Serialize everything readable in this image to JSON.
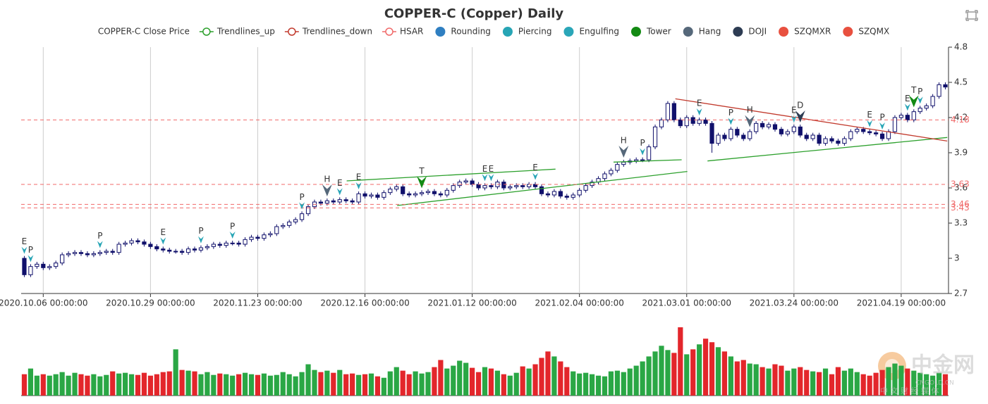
{
  "chart_data": {
    "type": "candlestick",
    "title": "COPPER-C (Copper) Daily",
    "categories": [
      null,
      null,
      null,
      "2020.10.06 00:00:00",
      null,
      null,
      null,
      null,
      null,
      null,
      null,
      null,
      null,
      null,
      null,
      null,
      null,
      null,
      null,
      null,
      "2020.10.29 00:00:00",
      null,
      null,
      null,
      null,
      null,
      null,
      null,
      null,
      null,
      null,
      null,
      null,
      null,
      null,
      null,
      null,
      "2020.11.23 00:00:00",
      null,
      null,
      null,
      null,
      null,
      null,
      null,
      null,
      null,
      null,
      null,
      null,
      null,
      null,
      null,
      null,
      "2020.12.16 00:00:00",
      null,
      null,
      null,
      null,
      null,
      null,
      null,
      null,
      null,
      null,
      null,
      null,
      null,
      null,
      null,
      null,
      "2021.01.12 00:00:00",
      null,
      null,
      null,
      null,
      null,
      null,
      null,
      null,
      null,
      null,
      null,
      null,
      null,
      null,
      null,
      null,
      "2021.02.04 00:00:00",
      null,
      null,
      null,
      null,
      null,
      null,
      null,
      null,
      null,
      null,
      null,
      null,
      null,
      null,
      null,
      null,
      "2021.03.01 00:00:00",
      null,
      null,
      null,
      null,
      null,
      null,
      null,
      null,
      null,
      null,
      null,
      null,
      null,
      null,
      null,
      null,
      "2021.03.24 00:00:00",
      null,
      null,
      null,
      null,
      null,
      null,
      null,
      null,
      null,
      null,
      null,
      null,
      null,
      null,
      null,
      null,
      "2021.04.19 00:00:00",
      null,
      null,
      null,
      null,
      null,
      null,
      null
    ],
    "open": [
      3.0,
      2.86,
      2.93,
      2.95,
      2.92,
      2.93,
      2.96,
      3.03,
      3.04,
      3.05,
      3.04,
      3.03,
      3.04,
      3.05,
      3.06,
      3.05,
      3.12,
      3.13,
      3.15,
      3.14,
      3.12,
      3.1,
      3.08,
      3.07,
      3.06,
      3.06,
      3.05,
      3.08,
      3.07,
      3.09,
      3.1,
      3.12,
      3.11,
      3.13,
      3.13,
      3.12,
      3.16,
      3.18,
      3.17,
      3.2,
      3.21,
      3.27,
      3.28,
      3.31,
      3.33,
      3.38,
      3.44,
      3.48,
      3.47,
      3.49,
      3.48,
      3.5,
      3.49,
      3.48,
      3.55,
      3.53,
      3.54,
      3.52,
      3.56,
      3.59,
      3.61,
      3.55,
      3.54,
      3.55,
      3.56,
      3.57,
      3.55,
      3.54,
      3.58,
      3.62,
      3.65,
      3.66,
      3.63,
      3.6,
      3.62,
      3.61,
      3.65,
      3.6,
      3.61,
      3.62,
      3.61,
      3.63,
      3.61,
      3.55,
      3.54,
      3.57,
      3.53,
      3.52,
      3.54,
      3.58,
      3.62,
      3.65,
      3.68,
      3.72,
      3.75,
      3.8,
      3.82,
      3.83,
      3.84,
      3.84,
      3.95,
      4.12,
      4.18,
      4.32,
      4.18,
      4.13,
      4.2,
      4.15,
      4.18,
      4.15,
      3.98,
      4.05,
      4.02,
      4.1,
      4.05,
      4.02,
      4.08,
      4.15,
      4.12,
      4.14,
      4.1,
      4.06,
      4.08,
      4.12,
      4.05,
      4.02,
      4.05,
      3.98,
      4.02,
      4.0,
      3.98,
      4.02,
      4.08,
      4.1,
      4.08,
      4.07,
      4.06,
      4.02,
      4.08,
      4.2,
      4.22,
      4.18,
      4.25,
      4.28,
      4.3,
      4.38,
      4.48
    ],
    "high": [
      3.02,
      2.95,
      2.97,
      2.97,
      2.95,
      2.98,
      3.05,
      3.06,
      3.07,
      3.07,
      3.06,
      3.06,
      3.07,
      3.08,
      3.08,
      3.14,
      3.15,
      3.17,
      3.17,
      3.16,
      3.14,
      3.12,
      3.1,
      3.09,
      3.08,
      3.08,
      3.1,
      3.1,
      3.11,
      3.12,
      3.14,
      3.14,
      3.15,
      3.15,
      3.15,
      3.18,
      3.2,
      3.2,
      3.22,
      3.23,
      3.29,
      3.3,
      3.33,
      3.35,
      3.4,
      3.46,
      3.5,
      3.5,
      3.51,
      3.51,
      3.52,
      3.52,
      3.51,
      3.57,
      3.57,
      3.56,
      3.56,
      3.58,
      3.61,
      3.63,
      3.63,
      3.57,
      3.57,
      3.58,
      3.59,
      3.59,
      3.57,
      3.6,
      3.64,
      3.67,
      3.68,
      3.68,
      3.65,
      3.64,
      3.64,
      3.67,
      3.67,
      3.63,
      3.64,
      3.64,
      3.65,
      3.65,
      3.63,
      3.57,
      3.59,
      3.59,
      3.55,
      3.56,
      3.6,
      3.64,
      3.67,
      3.7,
      3.74,
      3.77,
      3.82,
      3.84,
      3.85,
      3.86,
      3.86,
      3.97,
      4.14,
      4.2,
      4.34,
      4.34,
      4.2,
      4.22,
      4.22,
      4.2,
      4.2,
      4.17,
      4.07,
      4.07,
      4.12,
      4.12,
      4.07,
      4.1,
      4.17,
      4.17,
      4.16,
      4.16,
      4.12,
      4.1,
      4.14,
      4.14,
      4.07,
      4.07,
      4.07,
      4.04,
      4.04,
      4.02,
      4.04,
      4.1,
      4.12,
      4.12,
      4.1,
      4.09,
      4.08,
      4.1,
      4.22,
      4.24,
      4.24,
      4.27,
      4.3,
      4.32,
      4.4,
      4.5,
      4.5
    ],
    "low": [
      2.84,
      2.84,
      2.91,
      2.9,
      2.9,
      2.91,
      2.94,
      3.01,
      3.02,
      3.02,
      3.01,
      3.01,
      3.02,
      3.03,
      3.03,
      3.03,
      3.1,
      3.11,
      3.12,
      3.1,
      3.08,
      3.06,
      3.05,
      3.04,
      3.04,
      3.03,
      3.03,
      3.05,
      3.05,
      3.07,
      3.08,
      3.09,
      3.09,
      3.11,
      3.1,
      3.1,
      3.14,
      3.15,
      3.15,
      3.18,
      3.19,
      3.25,
      3.26,
      3.29,
      3.31,
      3.36,
      3.42,
      3.45,
      3.45,
      3.46,
      3.46,
      3.47,
      3.46,
      3.46,
      3.51,
      3.51,
      3.5,
      3.5,
      3.54,
      3.57,
      3.53,
      3.52,
      3.52,
      3.53,
      3.54,
      3.53,
      3.52,
      3.52,
      3.56,
      3.6,
      3.63,
      3.61,
      3.58,
      3.58,
      3.59,
      3.59,
      3.58,
      3.58,
      3.59,
      3.59,
      3.59,
      3.59,
      3.53,
      3.52,
      3.52,
      3.51,
      3.5,
      3.5,
      3.52,
      3.56,
      3.6,
      3.63,
      3.66,
      3.7,
      3.73,
      3.78,
      3.8,
      3.81,
      3.82,
      3.82,
      3.93,
      4.1,
      4.16,
      4.16,
      4.11,
      4.11,
      4.13,
      4.13,
      4.13,
      3.9,
      3.96,
      4.0,
      4.0,
      4.03,
      4.0,
      4.0,
      4.06,
      4.1,
      4.1,
      4.08,
      4.04,
      4.04,
      4.06,
      4.03,
      4.0,
      4.0,
      3.96,
      3.96,
      3.98,
      3.96,
      3.96,
      4.0,
      4.06,
      4.06,
      4.05,
      4.04,
      4.0,
      4.0,
      4.06,
      4.18,
      4.16,
      4.16,
      4.23,
      4.26,
      4.28,
      4.36,
      4.44
    ],
    "close": [
      2.86,
      2.93,
      2.95,
      2.92,
      2.93,
      2.96,
      3.03,
      3.04,
      3.05,
      3.04,
      3.03,
      3.04,
      3.05,
      3.06,
      3.05,
      3.12,
      3.13,
      3.15,
      3.14,
      3.12,
      3.1,
      3.08,
      3.07,
      3.06,
      3.06,
      3.05,
      3.08,
      3.07,
      3.09,
      3.1,
      3.12,
      3.11,
      3.13,
      3.13,
      3.12,
      3.16,
      3.18,
      3.17,
      3.2,
      3.21,
      3.27,
      3.28,
      3.31,
      3.33,
      3.38,
      3.44,
      3.48,
      3.47,
      3.49,
      3.48,
      3.5,
      3.49,
      3.48,
      3.55,
      3.53,
      3.54,
      3.52,
      3.56,
      3.59,
      3.61,
      3.55,
      3.54,
      3.55,
      3.56,
      3.57,
      3.55,
      3.54,
      3.58,
      3.62,
      3.65,
      3.66,
      3.63,
      3.6,
      3.62,
      3.61,
      3.65,
      3.6,
      3.61,
      3.62,
      3.61,
      3.63,
      3.61,
      3.55,
      3.54,
      3.57,
      3.53,
      3.52,
      3.54,
      3.58,
      3.62,
      3.65,
      3.68,
      3.72,
      3.75,
      3.8,
      3.82,
      3.83,
      3.84,
      3.84,
      3.95,
      4.12,
      4.18,
      4.32,
      4.18,
      4.13,
      4.2,
      4.15,
      4.18,
      4.15,
      3.98,
      4.05,
      4.02,
      4.1,
      4.05,
      4.02,
      4.08,
      4.15,
      4.12,
      4.14,
      4.1,
      4.06,
      4.08,
      4.12,
      4.05,
      4.02,
      4.05,
      3.98,
      4.02,
      4.0,
      3.98,
      4.02,
      4.08,
      4.1,
      4.08,
      4.07,
      4.06,
      4.02,
      4.08,
      4.2,
      4.22,
      4.18,
      4.25,
      4.28,
      4.3,
      4.38,
      4.48,
      4.46
    ],
    "volume": [
      30,
      38,
      28,
      30,
      28,
      30,
      33,
      28,
      32,
      30,
      28,
      30,
      27,
      29,
      34,
      31,
      32,
      30,
      29,
      32,
      28,
      30,
      33,
      34,
      65,
      36,
      35,
      34,
      30,
      33,
      29,
      31,
      30,
      28,
      30,
      32,
      30,
      29,
      31,
      28,
      29,
      33,
      30,
      27,
      33,
      44,
      36,
      33,
      35,
      32,
      36,
      30,
      31,
      29,
      30,
      31,
      27,
      25,
      34,
      40,
      35,
      30,
      34,
      31,
      33,
      40,
      50,
      38,
      42,
      49,
      46,
      39,
      33,
      40,
      38,
      35,
      30,
      28,
      32,
      41,
      38,
      44,
      53,
      62,
      55,
      48,
      40,
      34,
      31,
      32,
      30,
      28,
      27,
      34,
      35,
      33,
      38,
      42,
      48,
      55,
      62,
      70,
      64,
      60,
      96,
      58,
      65,
      72,
      80,
      75,
      68,
      62,
      55,
      48,
      50,
      45,
      44,
      40,
      38,
      44,
      42,
      35,
      38,
      40,
      36,
      34,
      33,
      38,
      30,
      40,
      35,
      38,
      33,
      30,
      28,
      32,
      36,
      40,
      45,
      42,
      38,
      35,
      32,
      30,
      28,
      32,
      30
    ],
    "volume_colors": {
      "up": "#2aa745",
      "down": "#e3262b"
    },
    "ylim": [
      2.7,
      4.8
    ],
    "yticks": [
      2.7,
      3,
      3.3,
      3.6,
      3.9,
      4.2,
      4.5,
      4.8
    ],
    "series": [
      {
        "name": "COPPER-C Close Price",
        "color": "#10106b",
        "icon": "none"
      },
      {
        "name": "Trendlines_up",
        "color": "#2ca02c",
        "icon": "line-circle",
        "segments": [
          [
            [
              51.1,
              3.66
            ],
            [
              84.2,
              3.76
            ]
          ],
          [
            [
              59.1,
              3.45
            ],
            [
              105.1,
              3.74
            ]
          ],
          [
            [
              93.4,
              3.82
            ],
            [
              104.2,
              3.84
            ]
          ],
          [
            [
              108.3,
              3.83
            ],
            [
              146.3,
              4.03
            ]
          ]
        ]
      },
      {
        "name": "Trendlines_down",
        "color": "#c23b2e",
        "icon": "line-circle",
        "segments": [
          [
            [
              103.2,
              4.36
            ],
            [
              146.3,
              4.0
            ]
          ]
        ]
      },
      {
        "name": "HSAR",
        "color": "#f06a6a",
        "icon": "line-circle",
        "levels": [
          4.18,
          3.63,
          3.46,
          3.43
        ]
      },
      {
        "name": "Rounding",
        "color": "#2f7fc1",
        "icon": "circle"
      },
      {
        "name": "Piercing",
        "color": "#27a5b5",
        "icon": "circle"
      },
      {
        "name": "Engulfing",
        "color": "#2aa6b8",
        "icon": "circle"
      },
      {
        "name": "Tower",
        "color": "#138a13",
        "icon": "circle"
      },
      {
        "name": "Hang",
        "color": "#56687a",
        "icon": "circle"
      },
      {
        "name": "DOJI",
        "color": "#2d3c53",
        "icon": "circle"
      },
      {
        "name": "SZQMXR",
        "color": "#e8503f",
        "icon": "circle"
      },
      {
        "name": "SZQMX",
        "color": "#e8503f",
        "icon": "circle"
      }
    ],
    "markers": [
      {
        "index": 0,
        "label": "E",
        "pattern": "Engulfing"
      },
      {
        "index": 1,
        "label": "P",
        "pattern": "Piercing"
      },
      {
        "index": 12,
        "label": "P",
        "pattern": "Piercing"
      },
      {
        "index": 22,
        "label": "E",
        "pattern": "Engulfing"
      },
      {
        "index": 28,
        "label": "P",
        "pattern": "Piercing"
      },
      {
        "index": 33,
        "label": "P",
        "pattern": "Piercing"
      },
      {
        "index": 44,
        "label": "P",
        "pattern": "Piercing"
      },
      {
        "index": 48,
        "label": "H",
        "pattern": "Hang"
      },
      {
        "index": 50,
        "label": "E",
        "pattern": "Engulfing"
      },
      {
        "index": 53,
        "label": "E",
        "pattern": "Engulfing"
      },
      {
        "index": 63,
        "label": "T",
        "pattern": "Tower"
      },
      {
        "index": 73,
        "label": "E",
        "pattern": "Engulfing"
      },
      {
        "index": 74,
        "label": "E",
        "pattern": "Engulfing"
      },
      {
        "index": 81,
        "label": "E",
        "pattern": "Engulfing"
      },
      {
        "index": 95,
        "label": "H",
        "pattern": "Hang"
      },
      {
        "index": 98,
        "label": "P",
        "pattern": "Piercing"
      },
      {
        "index": 107,
        "label": "E",
        "pattern": "Engulfing"
      },
      {
        "index": 112,
        "label": "P",
        "pattern": "Piercing"
      },
      {
        "index": 115,
        "label": "H",
        "pattern": "Hang"
      },
      {
        "index": 122,
        "label": "E",
        "pattern": "Engulfing"
      },
      {
        "index": 123,
        "label": "D",
        "pattern": "DOJI"
      },
      {
        "index": 134,
        "label": "E",
        "pattern": "Engulfing"
      },
      {
        "index": 136,
        "label": "P",
        "pattern": "Piercing"
      },
      {
        "index": 140,
        "label": "E",
        "pattern": "Engulfing"
      },
      {
        "index": 141,
        "label": "T",
        "pattern": "Tower"
      },
      {
        "index": 142,
        "label": "P",
        "pattern": "Piercing"
      }
    ],
    "watermark": [
      "中金网",
      "CNGOLD.CN",
      "中 文 财 经 媒 体"
    ]
  }
}
